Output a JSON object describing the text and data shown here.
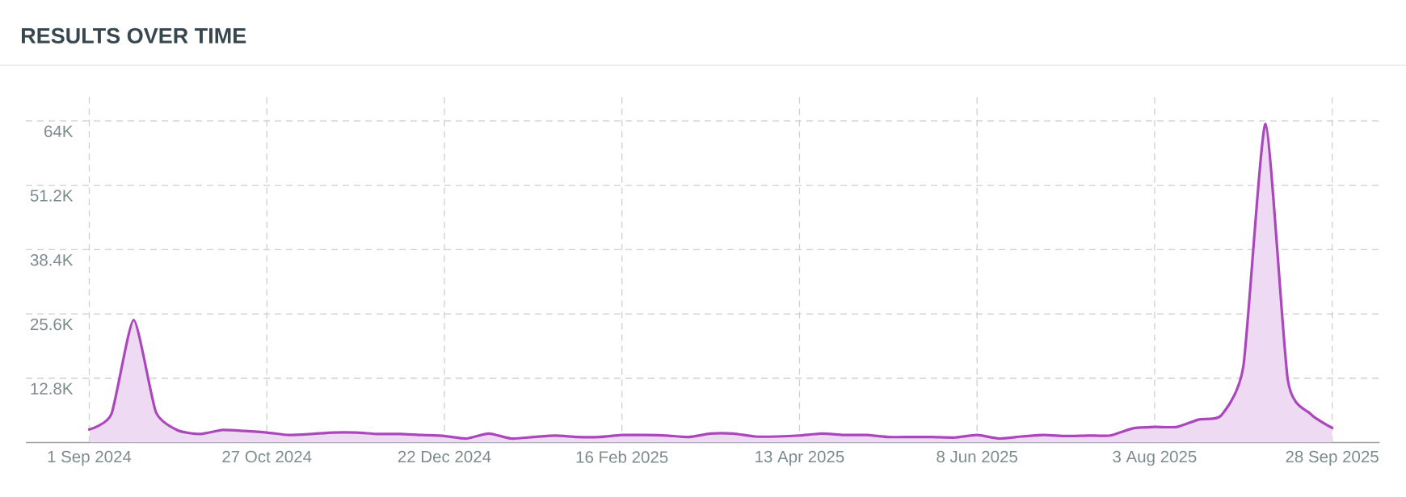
{
  "chart_data": {
    "type": "area",
    "title": "RESULTS OVER TIME",
    "color": "#ab47bc",
    "x": [
      "2024-09-01",
      "2024-09-08",
      "2024-09-15",
      "2024-09-22",
      "2024-09-29",
      "2024-10-06",
      "2024-10-13",
      "2024-10-20",
      "2024-10-27",
      "2024-11-03",
      "2024-11-10",
      "2024-11-17",
      "2024-11-24",
      "2024-12-01",
      "2024-12-08",
      "2024-12-15",
      "2024-12-22",
      "2024-12-29",
      "2025-01-05",
      "2025-01-12",
      "2025-01-19",
      "2025-01-26",
      "2025-02-02",
      "2025-02-09",
      "2025-02-16",
      "2025-02-23",
      "2025-03-02",
      "2025-03-09",
      "2025-03-16",
      "2025-03-23",
      "2025-03-30",
      "2025-04-06",
      "2025-04-13",
      "2025-04-20",
      "2025-04-27",
      "2025-05-04",
      "2025-05-11",
      "2025-05-18",
      "2025-05-25",
      "2025-06-01",
      "2025-06-08",
      "2025-06-15",
      "2025-06-22",
      "2025-06-29",
      "2025-07-06",
      "2025-07-13",
      "2025-07-20",
      "2025-07-27",
      "2025-08-03",
      "2025-08-10",
      "2025-08-17",
      "2025-08-24",
      "2025-08-31",
      "2025-09-07",
      "2025-09-14",
      "2025-09-21",
      "2025-09-28"
    ],
    "values": [
      2600,
      5700,
      24400,
      6100,
      2400,
      1700,
      2500,
      2300,
      2000,
      1500,
      1700,
      2000,
      2000,
      1700,
      1700,
      1500,
      1300,
      800,
      1800,
      800,
      1100,
      1400,
      1100,
      1100,
      1500,
      1500,
      1400,
      1100,
      1800,
      1800,
      1200,
      1200,
      1400,
      1800,
      1500,
      1500,
      1100,
      1100,
      1100,
      1000,
      1500,
      800,
      1200,
      1500,
      1300,
      1400,
      1400,
      2800,
      3100,
      3100,
      4600,
      5400,
      15200,
      63400,
      12500,
      5800,
      2900
    ],
    "xlim": [
      "2024-08-12",
      "2025-10-13"
    ],
    "ylim": [
      0,
      68900
    ],
    "xticks": [
      {
        "value": "2024-09-01",
        "label": "1 Sep 2024"
      },
      {
        "value": "2024-10-27",
        "label": "27 Oct 2024"
      },
      {
        "value": "2024-12-22",
        "label": "22 Dec 2024"
      },
      {
        "value": "2025-02-16",
        "label": "16 Feb 2025"
      },
      {
        "value": "2025-04-13",
        "label": "13 Apr 2025"
      },
      {
        "value": "2025-06-08",
        "label": "8 Jun 2025"
      },
      {
        "value": "2025-08-03",
        "label": "3 Aug 2025"
      },
      {
        "value": "2025-09-28",
        "label": "28 Sep 2025"
      }
    ],
    "yticks": [
      {
        "value": 12800,
        "label": "12.8K"
      },
      {
        "value": 25600,
        "label": "25.6K"
      },
      {
        "value": 38400,
        "label": "38.4K"
      },
      {
        "value": 51200,
        "label": "51.2K"
      },
      {
        "value": 64000,
        "label": "64K"
      }
    ],
    "grid": true
  }
}
